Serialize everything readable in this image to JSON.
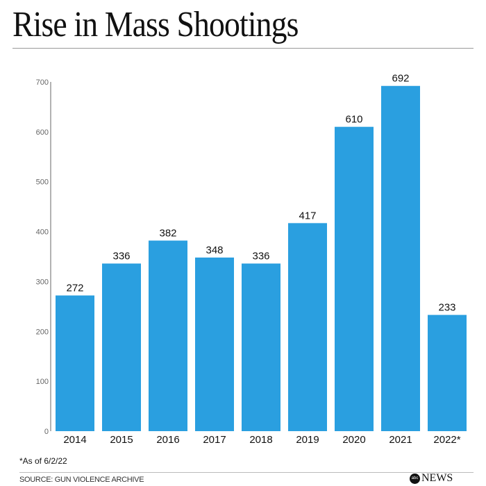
{
  "chart_data": {
    "type": "bar",
    "title": "Rise in Mass Shootings",
    "categories": [
      "2014",
      "2015",
      "2016",
      "2017",
      "2018",
      "2019",
      "2020",
      "2021",
      "2022*"
    ],
    "values": [
      272,
      336,
      382,
      348,
      336,
      417,
      610,
      692,
      233
    ],
    "data_labels": [
      "272",
      "336",
      "382",
      "348",
      "336",
      "417",
      "610",
      "692",
      "233"
    ],
    "yticks": [
      "0",
      "100",
      "200",
      "300",
      "400",
      "500",
      "600",
      "700"
    ],
    "ylim": [
      0,
      700
    ],
    "xlabel": "",
    "ylabel": "",
    "grid": false,
    "bar_color": "#2a9fe0"
  },
  "footnote": "*As of 6/2/22",
  "source": "SOURCE: GUN VIOLENCE ARCHIVE",
  "logo": {
    "abc": "abc",
    "news": "NEWS"
  }
}
